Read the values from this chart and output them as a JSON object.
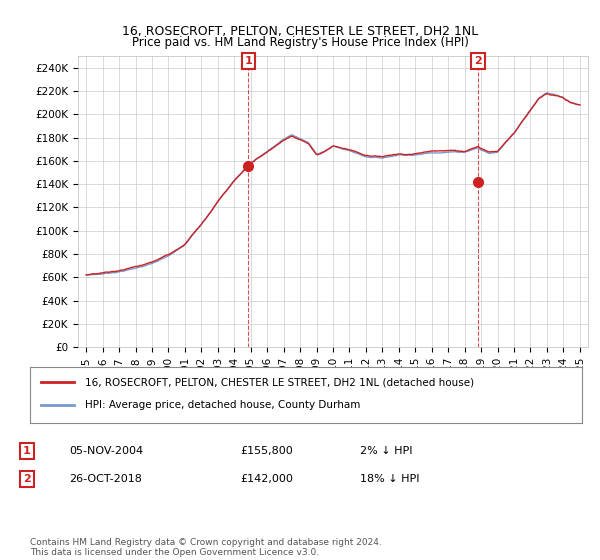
{
  "title": "16, ROSECROFT, PELTON, CHESTER LE STREET, DH2 1NL",
  "subtitle": "Price paid vs. HM Land Registry's House Price Index (HPI)",
  "legend_line1": "16, ROSECROFT, PELTON, CHESTER LE STREET, DH2 1NL (detached house)",
  "legend_line2": "HPI: Average price, detached house, County Durham",
  "annotation1_label": "1",
  "annotation1_date": "05-NOV-2004",
  "annotation1_price": "£155,800",
  "annotation1_hpi": "2% ↓ HPI",
  "annotation2_label": "2",
  "annotation2_date": "26-OCT-2018",
  "annotation2_price": "£142,000",
  "annotation2_hpi": "18% ↓ HPI",
  "footer": "Contains HM Land Registry data © Crown copyright and database right 2024.\nThis data is licensed under the Open Government Licence v3.0.",
  "sale1_x": 2004.85,
  "sale1_y": 155800,
  "sale2_x": 2018.82,
  "sale2_y": 142000,
  "hpi_color": "#7799cc",
  "price_color": "#cc2222",
  "sale_marker_color": "#cc2222",
  "annotation_box_color": "#cc2222",
  "background_color": "#ffffff",
  "grid_color": "#cccccc",
  "ylim": [
    0,
    250000
  ],
  "xlim": [
    1994.5,
    2025.5
  ],
  "yticks": [
    0,
    20000,
    40000,
    60000,
    80000,
    100000,
    120000,
    140000,
    160000,
    180000,
    200000,
    220000,
    240000
  ],
  "ytick_labels": [
    "£0",
    "£20K",
    "£40K",
    "£60K",
    "£80K",
    "£100K",
    "£120K",
    "£140K",
    "£160K",
    "£180K",
    "£200K",
    "£220K",
    "£240K"
  ],
  "xticks": [
    1995,
    1996,
    1997,
    1998,
    1999,
    2000,
    2001,
    2002,
    2003,
    2004,
    2005,
    2006,
    2007,
    2008,
    2009,
    2010,
    2011,
    2012,
    2013,
    2014,
    2015,
    2016,
    2017,
    2018,
    2019,
    2020,
    2021,
    2022,
    2023,
    2024,
    2025
  ],
  "hpi_keypoints": [
    [
      1995.0,
      62000
    ],
    [
      1996.0,
      63000
    ],
    [
      1997.0,
      65000
    ],
    [
      1998.0,
      68000
    ],
    [
      1999.0,
      72000
    ],
    [
      2000.0,
      78000
    ],
    [
      2001.0,
      87000
    ],
    [
      2002.0,
      105000
    ],
    [
      2003.0,
      125000
    ],
    [
      2004.0,
      143000
    ],
    [
      2005.0,
      158000
    ],
    [
      2006.0,
      168000
    ],
    [
      2007.0,
      178000
    ],
    [
      2007.5,
      182000
    ],
    [
      2008.5,
      175000
    ],
    [
      2009.0,
      165000
    ],
    [
      2009.5,
      168000
    ],
    [
      2010.0,
      172000
    ],
    [
      2010.5,
      170000
    ],
    [
      2011.0,
      168000
    ],
    [
      2012.0,
      163000
    ],
    [
      2013.0,
      162000
    ],
    [
      2014.0,
      165000
    ],
    [
      2015.0,
      165000
    ],
    [
      2016.0,
      167000
    ],
    [
      2017.0,
      168000
    ],
    [
      2018.0,
      168000
    ],
    [
      2018.82,
      172000
    ],
    [
      2019.0,
      170000
    ],
    [
      2019.5,
      167000
    ],
    [
      2020.0,
      168000
    ],
    [
      2021.0,
      185000
    ],
    [
      2022.0,
      205000
    ],
    [
      2022.5,
      215000
    ],
    [
      2023.0,
      220000
    ],
    [
      2023.5,
      218000
    ],
    [
      2024.0,
      215000
    ],
    [
      2024.5,
      210000
    ],
    [
      2025.0,
      208000
    ]
  ]
}
